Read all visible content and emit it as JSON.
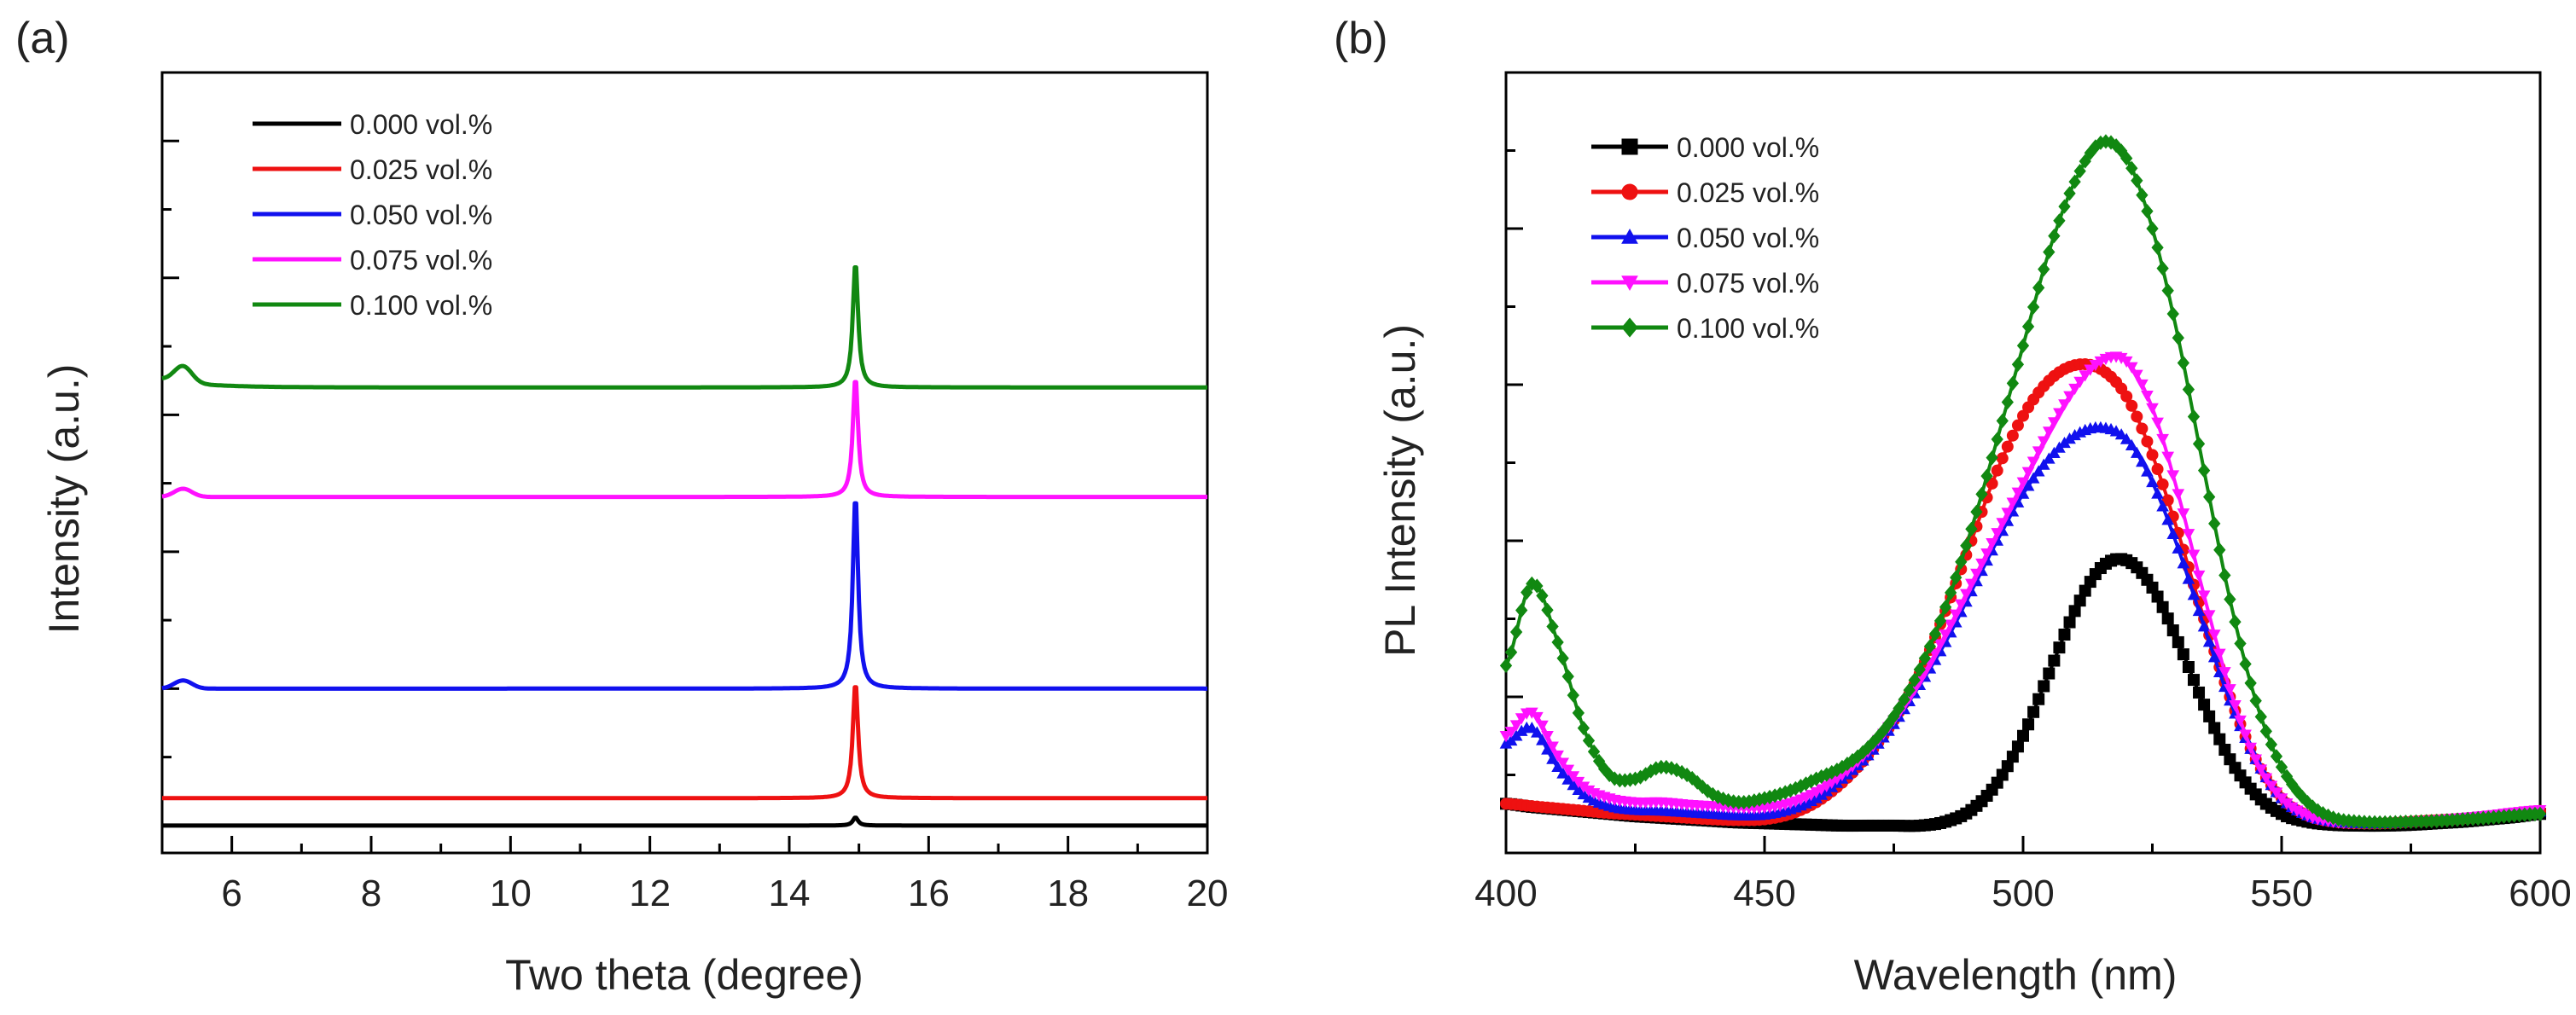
{
  "chart_data": [
    {
      "type": "line",
      "panel_label": "(a)",
      "xlabel": "Two theta (degree)",
      "ylabel": "Intensity (a.u.)",
      "xlim": [
        5,
        20
      ],
      "ylim": [
        -0.2,
        5.5
      ],
      "xticks": [
        6,
        8,
        10,
        12,
        14,
        16,
        18,
        20
      ],
      "xtick_labels": [
        "6",
        "8",
        "10",
        "12",
        "14",
        "16",
        "18",
        "20"
      ],
      "yticks_labels_visible": false,
      "legend_position": "top-left",
      "grid": false,
      "peak_center": 14.95,
      "series": [
        {
          "name": "0.000 vol.%",
          "color": "#000000",
          "baseline": 0.0,
          "peak_height": 0.06,
          "shoulder_height": 0.0
        },
        {
          "name": "0.025 vol.%",
          "color": "#ee1111",
          "baseline": 0.2,
          "peak_height": 0.85,
          "shoulder_height": 0.0
        },
        {
          "name": "0.050 vol.%",
          "color": "#1111ee",
          "baseline": 1.0,
          "peak_height": 1.42,
          "shoulder_height": 0.06
        },
        {
          "name": "0.075 vol.%",
          "color": "#ff11ff",
          "baseline": 2.4,
          "peak_height": 0.88,
          "shoulder_height": 0.06
        },
        {
          "name": "0.100 vol.%",
          "color": "#118811",
          "baseline": 3.2,
          "peak_height": 0.92,
          "shoulder_height": 0.12
        }
      ]
    },
    {
      "type": "line",
      "panel_label": "(b)",
      "xlabel": "Wavelength (nm)",
      "ylabel": "PL Intensity (a.u.)",
      "xlim": [
        400,
        600
      ],
      "ylim": [
        0,
        100
      ],
      "xticks": [
        400,
        450,
        500,
        550,
        600
      ],
      "xtick_labels": [
        "400",
        "450",
        "500",
        "550",
        "600"
      ],
      "yticks_labels_visible": false,
      "legend_position": "top-left",
      "grid": false,
      "x": [
        400,
        405,
        410,
        415,
        420,
        425,
        430,
        435,
        440,
        445,
        450,
        455,
        460,
        465,
        470,
        475,
        480,
        485,
        490,
        495,
        500,
        505,
        510,
        515,
        520,
        525,
        530,
        535,
        540,
        545,
        550,
        555,
        560,
        565,
        570,
        575,
        580,
        585,
        590,
        595,
        600
      ],
      "series": [
        {
          "name": "0.000 vol.%",
          "color": "#000000",
          "marker": "square",
          "values": [
            6.3,
            5.9,
            5.6,
            5.3,
            5.0,
            4.7,
            4.5,
            4.3,
            4.1,
            3.9,
            3.8,
            3.7,
            3.6,
            3.5,
            3.5,
            3.5,
            3.5,
            4.0,
            5.5,
            9.0,
            15.0,
            23.0,
            31.0,
            36.5,
            37.5,
            34.0,
            27.0,
            19.0,
            12.0,
            7.5,
            5.0,
            4.0,
            3.6,
            3.5,
            3.5,
            3.6,
            3.8,
            4.0,
            4.3,
            4.6,
            5.0
          ]
        },
        {
          "name": "0.025 vol.%",
          "color": "#ee1111",
          "marker": "circle",
          "values": [
            6.3,
            6.0,
            5.7,
            5.4,
            5.1,
            4.9,
            4.7,
            4.5,
            4.3,
            4.2,
            4.3,
            5.0,
            6.5,
            9.0,
            12.5,
            17.0,
            23.0,
            31.0,
            40.0,
            49.0,
            56.0,
            60.5,
            62.5,
            62.0,
            58.5,
            51.0,
            41.0,
            30.0,
            20.0,
            12.0,
            7.0,
            4.8,
            4.0,
            3.8,
            3.8,
            4.0,
            4.2,
            4.4,
            4.7,
            5.0,
            5.4
          ]
        },
        {
          "name": "0.050 vol.%",
          "color": "#1111ee",
          "marker": "triangle",
          "values": [
            14.0,
            16.0,
            11.0,
            7.5,
            6.0,
            5.5,
            5.4,
            5.2,
            5.0,
            4.8,
            4.9,
            5.6,
            7.0,
            9.5,
            12.5,
            16.5,
            21.5,
            27.0,
            33.5,
            40.0,
            46.0,
            50.5,
            53.5,
            54.5,
            53.0,
            47.5,
            39.0,
            29.0,
            19.5,
            12.0,
            7.0,
            4.8,
            4.0,
            3.8,
            3.8,
            4.0,
            4.2,
            4.4,
            4.7,
            5.0,
            5.3
          ]
        },
        {
          "name": "0.075 vol.%",
          "color": "#ff11ff",
          "marker": "triangle-down",
          "values": [
            15.0,
            18.0,
            12.5,
            8.5,
            7.0,
            6.5,
            6.5,
            6.2,
            6.0,
            5.8,
            5.8,
            6.4,
            7.8,
            10.0,
            13.0,
            17.0,
            22.0,
            28.0,
            34.5,
            41.0,
            47.5,
            54.0,
            59.5,
            63.0,
            63.0,
            57.0,
            46.0,
            33.0,
            21.0,
            12.0,
            7.0,
            4.8,
            4.0,
            3.8,
            3.8,
            4.0,
            4.2,
            4.5,
            4.8,
            5.2,
            5.5
          ]
        },
        {
          "name": "0.100 vol.%",
          "color": "#118811",
          "marker": "diamond",
          "values": [
            24.0,
            34.5,
            27.0,
            16.0,
            10.0,
            9.5,
            11.0,
            10.0,
            7.5,
            6.5,
            7.0,
            8.0,
            9.5,
            11.0,
            13.5,
            17.5,
            23.5,
            31.5,
            41.5,
            53.0,
            65.0,
            77.0,
            86.0,
            91.0,
            89.0,
            80.0,
            66.0,
            49.0,
            32.5,
            19.5,
            11.0,
            6.5,
            4.5,
            4.0,
            3.9,
            4.0,
            4.1,
            4.3,
            4.5,
            4.8,
            5.0
          ]
        }
      ]
    }
  ]
}
